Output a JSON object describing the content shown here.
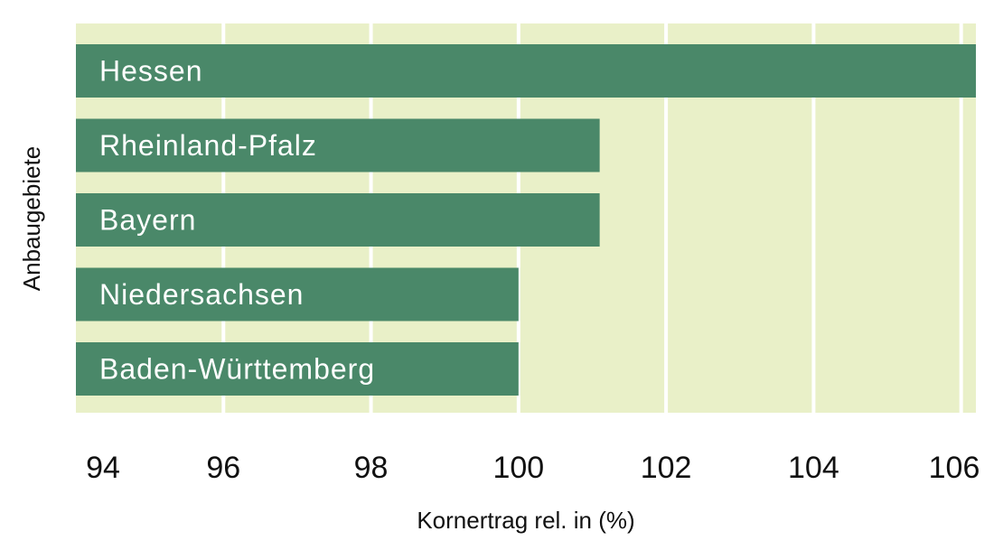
{
  "chart_data": {
    "type": "bar",
    "orientation": "horizontal",
    "categories": [
      "Hessen",
      "Rheinland-Pfalz",
      "Bayern",
      "Niedersachsen",
      "Baden-Württemberg"
    ],
    "values": [
      106.2,
      101.1,
      101.1,
      100.0,
      100.0
    ],
    "title": "",
    "xlabel": "Kornertrag rel. in (%)",
    "ylabel": "Anbaugebiete",
    "xlim": [
      94,
      106.2
    ],
    "xticks": [
      "94",
      "96",
      "98",
      "100",
      "102",
      "104",
      "106"
    ],
    "grid": true,
    "colors": {
      "bar": "#4a8869",
      "plot_background": "#e9f0c8",
      "grid": "#ffffff",
      "bar_text": "#ffffff"
    }
  }
}
